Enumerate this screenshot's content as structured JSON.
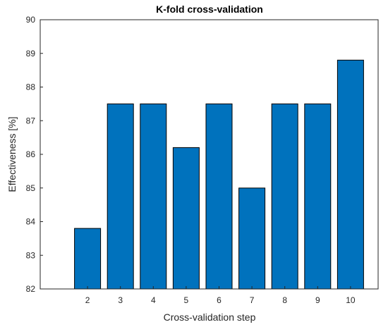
{
  "chart_data": {
    "type": "bar",
    "title": "K-fold cross-validation",
    "xlabel": "Cross-validation step",
    "ylabel": "Effectiveness [%]",
    "categories": [
      "2",
      "3",
      "4",
      "5",
      "6",
      "7",
      "8",
      "9",
      "10"
    ],
    "values": [
      83.8,
      87.5,
      87.5,
      86.2,
      87.5,
      85.0,
      87.5,
      87.5,
      88.8
    ],
    "ylim": [
      82,
      90
    ],
    "yticks": [
      "82",
      "83",
      "84",
      "85",
      "86",
      "87",
      "88",
      "89",
      "90"
    ],
    "grid": false,
    "legend": "none",
    "bar_color": "#0072BD",
    "edge_color": "#000000"
  }
}
